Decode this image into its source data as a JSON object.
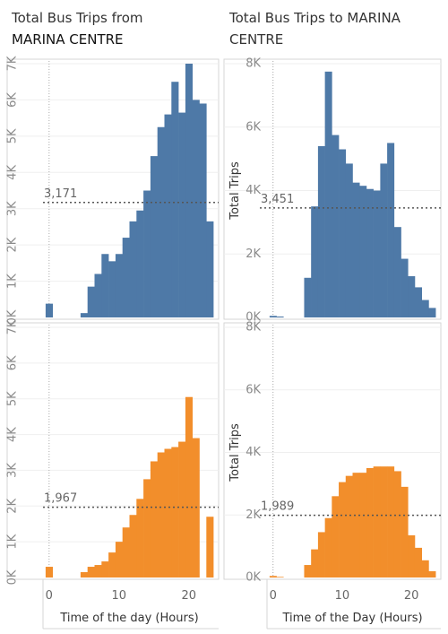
{
  "titles": {
    "left_line1": "Total Bus Trips from",
    "left_line2": "MARINA CENTRE",
    "right_line1": "Total Bus Trips to MARINA",
    "right_line2": "CENTRE"
  },
  "colors": {
    "blue": "#4e79a7",
    "orange": "#f28e2b"
  },
  "chart_data": [
    {
      "type": "bar",
      "panel": "from-top",
      "x": [
        0,
        1,
        2,
        3,
        4,
        5,
        6,
        7,
        8,
        9,
        10,
        11,
        12,
        13,
        14,
        15,
        16,
        17,
        18,
        19,
        20,
        21,
        22,
        23
      ],
      "values": [
        380,
        0,
        0,
        0,
        0,
        120,
        850,
        1200,
        1750,
        1550,
        1750,
        2200,
        2650,
        2950,
        3500,
        4450,
        5250,
        5600,
        6500,
        5650,
        7000,
        6000,
        5900,
        2650
      ],
      "ylim": [
        0,
        7000
      ],
      "yticks": [
        "0K",
        "1K",
        "2K",
        "3K",
        "4K",
        "5K",
        "6K",
        "7K"
      ],
      "ref_value": 3171,
      "ref_label": "3,171",
      "xlim": [
        -1,
        24
      ]
    },
    {
      "type": "bar",
      "panel": "to-top",
      "x": [
        0,
        1,
        2,
        3,
        4,
        5,
        6,
        7,
        8,
        9,
        10,
        11,
        12,
        13,
        14,
        15,
        16,
        17,
        18,
        19,
        20,
        21,
        22,
        23
      ],
      "values": [
        50,
        30,
        0,
        0,
        0,
        1250,
        3500,
        5400,
        7750,
        5750,
        5300,
        4850,
        4250,
        4150,
        4050,
        4000,
        4850,
        5500,
        2850,
        1850,
        1300,
        950,
        550,
        300
      ],
      "ylim": [
        0,
        8000
      ],
      "ylabel": "Total Trips",
      "yticks": [
        "0K",
        "2K",
        "4K",
        "6K",
        "8K"
      ],
      "ref_value": 3451,
      "ref_label": "3,451",
      "xlim": [
        -1,
        24
      ]
    },
    {
      "type": "bar",
      "panel": "from-bottom",
      "x": [
        0,
        1,
        2,
        3,
        4,
        5,
        6,
        7,
        8,
        9,
        10,
        11,
        12,
        13,
        14,
        15,
        16,
        17,
        18,
        19,
        20,
        21,
        22,
        23
      ],
      "values": [
        300,
        0,
        0,
        0,
        0,
        150,
        300,
        350,
        450,
        700,
        1000,
        1400,
        1750,
        2200,
        2750,
        3250,
        3500,
        3600,
        3650,
        3800,
        5050,
        3900,
        0,
        1700
      ],
      "ylim": [
        0,
        7000
      ],
      "yticks": [
        "0K",
        "1K",
        "2K",
        "3K",
        "4K",
        "5K",
        "6K",
        "7K"
      ],
      "ref_value": 1967,
      "ref_label": "1,967",
      "xlabel": "Time of the day (Hours)",
      "xticks": [
        0,
        10,
        20
      ],
      "xlim": [
        -1,
        24
      ]
    },
    {
      "type": "bar",
      "panel": "to-bottom",
      "x": [
        0,
        1,
        2,
        3,
        4,
        5,
        6,
        7,
        8,
        9,
        10,
        11,
        12,
        13,
        14,
        15,
        16,
        17,
        18,
        19,
        20,
        21,
        22,
        23
      ],
      "values": [
        50,
        20,
        0,
        0,
        0,
        400,
        900,
        1450,
        1900,
        2600,
        3050,
        3250,
        3350,
        3350,
        3500,
        3550,
        3550,
        3550,
        3400,
        2900,
        1350,
        950,
        550,
        200
      ],
      "ylim": [
        0,
        8000
      ],
      "ylabel": "Total Trips",
      "yticks": [
        "0K",
        "2K",
        "4K",
        "6K",
        "8K"
      ],
      "ref_value": 1989,
      "ref_label": "1,989",
      "xlabel": "Time of the Day (Hours)",
      "xticks": [
        0,
        10,
        20
      ],
      "xlim": [
        -1,
        24
      ]
    }
  ]
}
